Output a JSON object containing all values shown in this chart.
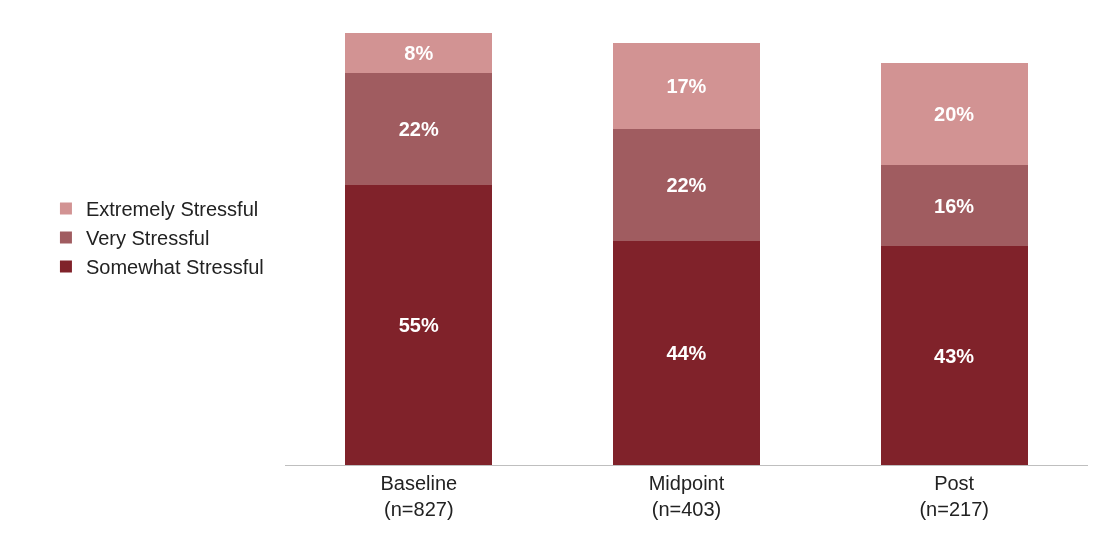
{
  "chart_data": {
    "type": "bar",
    "stacked": true,
    "categories": [
      "Baseline\n(n=827)",
      "Midpoint\n(n=403)",
      "Post\n(n=217)"
    ],
    "series": [
      {
        "name": "Somewhat Stressful",
        "color": "#80222a",
        "values": [
          55,
          44,
          43
        ],
        "value_labels": [
          "55%",
          "44%",
          "43%"
        ]
      },
      {
        "name": "Very Stressful",
        "color": "#a05c60",
        "values": [
          22,
          22,
          16
        ],
        "value_labels": [
          "22%",
          "22%",
          "16%"
        ]
      },
      {
        "name": "Extremely Stressful",
        "color": "#d29393",
        "values": [
          8,
          17,
          20
        ],
        "value_labels": [
          "8%",
          "17%",
          "20%"
        ]
      }
    ],
    "legend": "left"
  }
}
